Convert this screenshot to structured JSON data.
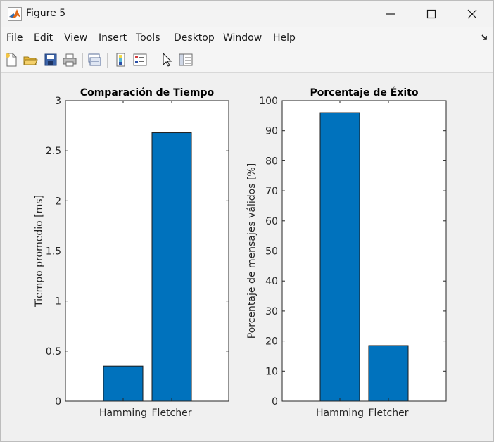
{
  "window": {
    "title": "Figure 5"
  },
  "menu": {
    "items": [
      "File",
      "Edit",
      "View",
      "Insert",
      "Tools",
      "Desktop",
      "Window",
      "Help"
    ]
  },
  "toolbar": {
    "icons": [
      "new-figure-icon",
      "open-icon",
      "save-icon",
      "print-icon",
      "link-plot-icon",
      "colorbar-icon",
      "legend-icon",
      "pointer-icon",
      "property-inspector-icon"
    ]
  },
  "colors": {
    "bar": "#0072BD",
    "axes_bg": "#ffffff",
    "figure_bg": "#f0f0f0"
  },
  "chart_data": [
    {
      "type": "bar",
      "title": "Comparación de Tiempo",
      "categories": [
        "Hamming",
        "Fletcher"
      ],
      "values": [
        0.35,
        2.68
      ],
      "xlabel": "",
      "ylabel": "Tiempo promedio [ms]",
      "ylim": [
        0,
        3
      ],
      "yticks": [
        "0",
        "0.5",
        "1",
        "1.5",
        "2",
        "2.5",
        "3"
      ],
      "grid": false
    },
    {
      "type": "bar",
      "title": "Porcentaje de Éxito",
      "categories": [
        "Hamming",
        "Fletcher"
      ],
      "values": [
        96,
        18.5
      ],
      "xlabel": "",
      "ylabel": "Porcentaje de mensajes válidos [%]",
      "ylim": [
        0,
        100
      ],
      "yticks": [
        "0",
        "10",
        "20",
        "30",
        "40",
        "50",
        "60",
        "70",
        "80",
        "90",
        "100"
      ],
      "grid": false
    }
  ]
}
